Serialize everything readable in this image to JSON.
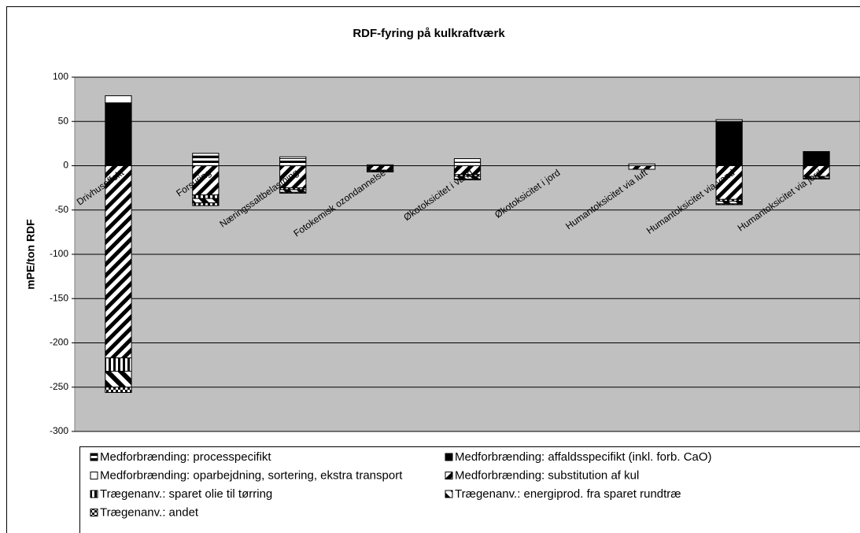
{
  "chart_data": {
    "type": "bar",
    "stacked": true,
    "title": "RDF-fyring på kulkraftværk",
    "y_label": "mPE/ton RDF",
    "categories": [
      "Drivhuseffekt",
      "Forsuring",
      "Næringssaltbelastning",
      "Fotokemisk ozondannelse",
      "Økotoksicitet i vand",
      "Økotoksicitet i jord",
      "Humantoksicitet via luft",
      "Humantoksicitet via vand",
      "Humantoksicitet via jord"
    ],
    "series": [
      {
        "name": "Medforbrænding: processpecifikt",
        "color": "#000000",
        "pattern": "horizontal",
        "values": [
          0,
          11,
          8,
          1,
          4,
          0,
          2,
          0,
          0
        ]
      },
      {
        "name": "Medforbrænding: affaldsspecifikt (inkl. forb. CaO)",
        "color": "#000000",
        "pattern": "solid",
        "values": [
          71,
          0,
          0,
          0,
          0,
          0,
          0,
          50,
          16
        ]
      },
      {
        "name": "Medforbrænding: oparbejdning, sortering, ekstra transport",
        "color": "#ffffff",
        "pattern": "solid",
        "values": [
          8,
          3,
          2,
          0,
          4,
          0,
          0,
          2,
          0
        ]
      },
      {
        "name": "Medforbrænding: substitution af kul",
        "color": "#000000",
        "pattern": "diagonal-down",
        "values": [
          -217,
          -33,
          -25,
          -5,
          -10,
          0,
          -4,
          -38,
          -12
        ]
      },
      {
        "name": "Trægenanv.: sparet olie til tørring",
        "color": "#000000",
        "pattern": "vertical",
        "values": [
          -15,
          -4,
          -2,
          -1,
          -2,
          0,
          0,
          -2,
          0
        ]
      },
      {
        "name": "Trægenanv.: energiprod. fra sparet rundtræ",
        "color": "#000000",
        "pattern": "diagonal-up",
        "values": [
          -18,
          -5,
          -3,
          -1,
          -3,
          0,
          0,
          -3,
          -2
        ]
      },
      {
        "name": "Trægenanv.: andet",
        "color": "#000000",
        "pattern": "checker",
        "values": [
          -6,
          -3,
          -1,
          0,
          -1,
          0,
          0,
          -1,
          -1
        ]
      }
    ],
    "ylim": [
      -300,
      100
    ],
    "yticks": [
      -300,
      -250,
      -200,
      -150,
      -100,
      -50,
      0,
      50,
      100
    ],
    "grid": true
  }
}
